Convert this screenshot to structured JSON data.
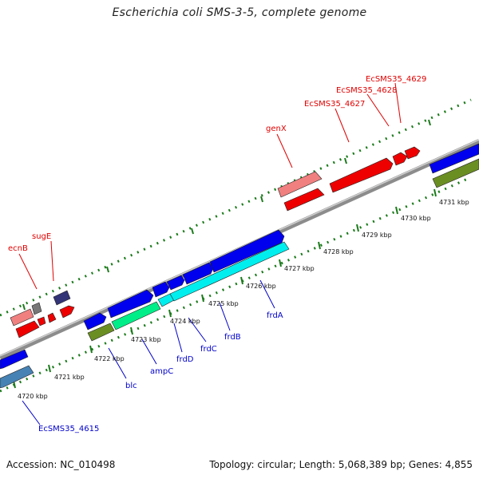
{
  "header": {
    "title": "Escherichia coli SMS-3-5, complete genome"
  },
  "footer": {
    "accession": "Accession: NC_010498",
    "summary": "Topology: circular; Length: 5,068,389 bp; Genes: 4,855"
  },
  "colors": {
    "backbone": "#8c8c8c",
    "tick": "#1a7a1a",
    "upper_label": "#e00000",
    "lower_label": "#0000cc",
    "red_cds": "#ee0000",
    "pink_cds": "#f08080",
    "blue_cds": "#0000ee",
    "cyan_cds": "#00eeee",
    "green_cds": "#6b8e23",
    "teal_cds": "#00ee88",
    "steelblue_cds": "#4682b4",
    "navy_cds": "#333377",
    "gray_cds": "#777777"
  },
  "scale_labels": [
    "4720 kbp",
    "4721 kbp",
    "4722 kbp",
    "4723 kbp",
    "4724 kbp",
    "4725 kbp",
    "4726 kbp",
    "4727 kbp",
    "4728 kbp",
    "4729 kbp",
    "4730 kbp",
    "4731 kbp"
  ],
  "upper_gene_labels": [
    "ecnB",
    "sugE",
    "genX",
    "EcSMS35_4627",
    "EcSMS35_4628",
    "EcSMS35_4629"
  ],
  "lower_gene_labels": [
    "blc",
    "ampC",
    "frdD",
    "frdC",
    "frdB",
    "frdA",
    "EcSMS35_4615"
  ]
}
